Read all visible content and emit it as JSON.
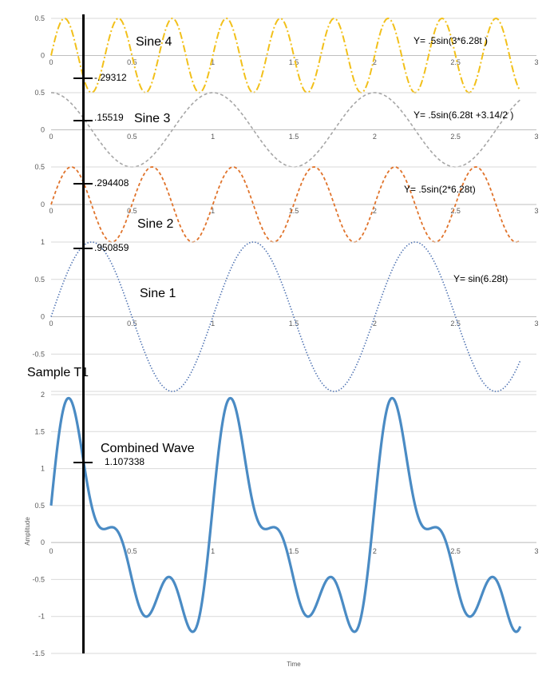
{
  "chart_data": [
    {
      "type": "line",
      "label": "Sine 4",
      "equation": "Y= .5sin(3*6.28t )",
      "x_ticks": [
        "0",
        "0.5",
        "1",
        "1.5",
        "2",
        "2.5",
        "3"
      ],
      "y_ticks": [
        "0.5",
        "0"
      ],
      "xlim": [
        0,
        3
      ],
      "ylim": [
        -0.5,
        0.5
      ],
      "series": [
        {
          "amplitude": 0.5,
          "frequency": 3,
          "phase": 0,
          "color": "#f2c01a",
          "style": "dash-dot"
        }
      ],
      "x_range": [
        0,
        2.9
      ],
      "sample_value": "-.29312"
    },
    {
      "type": "line",
      "label": "Sine 3",
      "equation": "Y= .5sin(6.28t +3.14/2 )",
      "x_ticks": [
        "0",
        "0.5",
        "1",
        "1.5",
        "2",
        "2.5",
        "3"
      ],
      "y_ticks": [
        "0.5",
        "0"
      ],
      "xlim": [
        0,
        3
      ],
      "ylim": [
        -0.5,
        0.5
      ],
      "series": [
        {
          "amplitude": 0.5,
          "frequency": 1,
          "phase": 1.57,
          "color": "#a6a6a6",
          "style": "dashed"
        }
      ],
      "x_range": [
        0,
        2.9
      ],
      "sample_value": ".15519"
    },
    {
      "type": "line",
      "label": "Sine 2",
      "equation": "Y= .5sin(2*6.28t)",
      "x_ticks": [
        "0",
        "0.5",
        "1",
        "1.5",
        "2",
        "2.5",
        "3"
      ],
      "y_ticks": [
        "0.5",
        "0"
      ],
      "xlim": [
        0,
        3
      ],
      "ylim": [
        -0.5,
        0.5
      ],
      "series": [
        {
          "amplitude": 0.5,
          "frequency": 2,
          "phase": 0,
          "color": "#e0732b",
          "style": "dashed"
        }
      ],
      "x_range": [
        0,
        2.9
      ],
      "sample_value": ".294408"
    },
    {
      "type": "line",
      "label": "Sine 1",
      "equation": "Y= sin(6.28t)",
      "x_ticks": [
        "0",
        "0.5",
        "1",
        "1.5",
        "2",
        "2.5",
        "3"
      ],
      "y_ticks": [
        "1",
        "0.5",
        "0",
        "-0.5"
      ],
      "xlim": [
        0,
        3
      ],
      "ylim": [
        -1,
        1
      ],
      "series": [
        {
          "amplitude": 1,
          "frequency": 1,
          "phase": 0,
          "color": "#4a6fb0",
          "style": "dotted"
        }
      ],
      "x_range": [
        0,
        2.9
      ],
      "sample_value": ".950859"
    },
    {
      "type": "line",
      "label": "Combined Wave",
      "xlabel": "Time",
      "ylabel": "Amplitude",
      "x_ticks": [
        "0",
        "0.5",
        "1",
        "1.5",
        "2",
        "2.5",
        "3"
      ],
      "y_ticks": [
        "2",
        "1.5",
        "1",
        "0.5",
        "0",
        "-0.5",
        "-1",
        "-1.5"
      ],
      "xlim": [
        0,
        3
      ],
      "ylim": [
        -1.5,
        2
      ],
      "series": [
        {
          "components": "sum of Sine 1 + Sine 2 + Sine 3 + Sine 4",
          "color": "#4a8bc4",
          "style": "solid"
        }
      ],
      "x_range": [
        0,
        2.9
      ],
      "sample_value": "1.107338"
    }
  ],
  "sample": {
    "label": "Sample T1",
    "t": 0.2
  }
}
